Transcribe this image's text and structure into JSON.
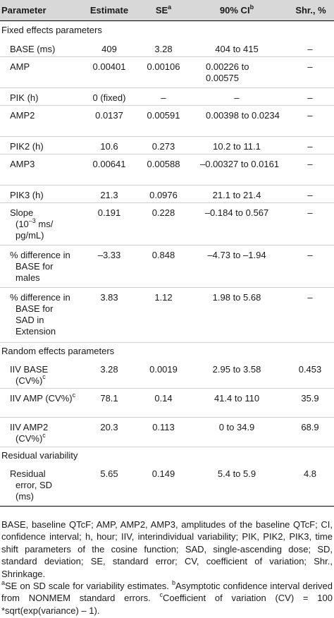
{
  "header": {
    "parameter": "Parameter",
    "estimate": "Estimate",
    "se": "SE",
    "se_sup": "a",
    "ci": "90% CI",
    "ci_sup": "b",
    "shr": "Shr., %"
  },
  "sections": {
    "fixed": "Fixed effects parameters",
    "random": "Random effects parameters",
    "residual": "Residual variability"
  },
  "rows": [
    {
      "param": "BASE (ms)",
      "estimate": "409",
      "se": "3.28",
      "ci": "404 to 415",
      "shr": "–"
    },
    {
      "param": "AMP",
      "estimate": "0.00401",
      "se": "0.00106",
      "ci": "0.00226 to 0.00575",
      "shr": "–"
    },
    {
      "param": "PIK (h)",
      "estimate": "0 (fixed)",
      "se": "–",
      "ci": "–",
      "shr": "–"
    },
    {
      "param": "AMP2",
      "estimate": "0.0137",
      "se": "0.00591",
      "ci": "0.00398 to 0.0234",
      "shr": "–"
    },
    {
      "param": "PIK2 (h)",
      "estimate": "10.6",
      "se": "0.273",
      "ci": "10.2 to 11.1",
      "shr": "–"
    },
    {
      "param": "AMP3",
      "estimate": "0.00641",
      "se": "0.00588",
      "ci": "–0.00327 to 0.0161",
      "shr": "–"
    },
    {
      "param": "PIK3 (h)",
      "estimate": "21.3",
      "se": "0.0976",
      "ci": "21.1 to 21.4",
      "shr": "–"
    },
    {
      "param_a": "Slope",
      "param_b": "(10",
      "param_exp": "–3",
      "param_c": " ms/ pg/mL)",
      "estimate": "0.191",
      "se": "0.228",
      "ci": "–0.184 to 0.567",
      "shr": "–"
    },
    {
      "param": "% difference in BASE for males",
      "estimate": "–3.33",
      "se": "0.848",
      "ci": "–4.73 to –1.94",
      "shr": "–"
    },
    {
      "param": "% difference in BASE for SAD in Extension",
      "estimate": "3.83",
      "se": "1.12",
      "ci": "1.98 to 5.68",
      "shr": "–"
    },
    {
      "param": "IIV BASE (CV%)",
      "param_sup": "c",
      "estimate": "3.28",
      "se": "0.0019",
      "ci": "2.95 to 3.58",
      "shr": "0.453"
    },
    {
      "param": "IIV AMP (CV%)",
      "param_sup": "c",
      "estimate": "78.1",
      "se": "0.14",
      "ci": "41.4 to 110",
      "shr": "35.9"
    },
    {
      "param": "IIV AMP2 (CV%)",
      "param_sup": "c",
      "estimate": "20.3",
      "se": "0.113",
      "ci": "0 to 34.9",
      "shr": "68.9"
    },
    {
      "param": "Residual error, SD (ms)",
      "estimate": "5.65",
      "se": "0.149",
      "ci": "5.4 to 5.9",
      "shr": "4.8"
    }
  ],
  "footnote": {
    "abbreviations": "BASE, baseline QTcF; AMP, AMP2, AMP3, amplitudes of the baseline QTcF; CI, confidence interval; h, hour; IIV, interindividual variability; PIK, PIK2, PIK3, time shift parameters of the cosine function; SAD, single-ascending dose; SD, standard deviation; SE, standard error; CV, coefficient of variation; Shr., Shrinkage.",
    "a_sup": "a",
    "a_text": "SE on SD scale for variability estimates. ",
    "b_sup": "b",
    "b_text": "Asymptotic confidence interval derived from NONMEM standard errors. ",
    "c_sup": "c",
    "c_text": "Coefficient of variation (CV) = 100 *sqrt(exp(variance) – 1)."
  }
}
